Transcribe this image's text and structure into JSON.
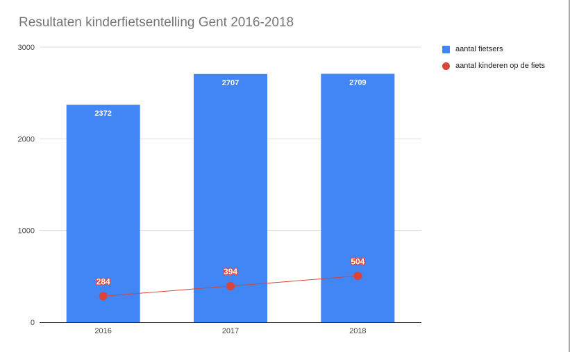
{
  "chart_data": {
    "type": "bar",
    "title": "Resultaten kinderfietsentelling Gent 2016-2018",
    "categories": [
      "2016",
      "2017",
      "2018"
    ],
    "series": [
      {
        "name": "aantal fietsers",
        "type": "bar",
        "values": [
          2372,
          2707,
          2709
        ],
        "color": "#4285f4"
      },
      {
        "name": "aantal kinderen op de fiets",
        "type": "line",
        "values": [
          284,
          394,
          504
        ],
        "color": "#db4437"
      }
    ],
    "ylim": [
      0,
      3000
    ],
    "yticks": [
      0,
      1000,
      2000,
      3000
    ],
    "xlabel": "",
    "ylabel": "",
    "grid": true,
    "legend_position": "right"
  }
}
